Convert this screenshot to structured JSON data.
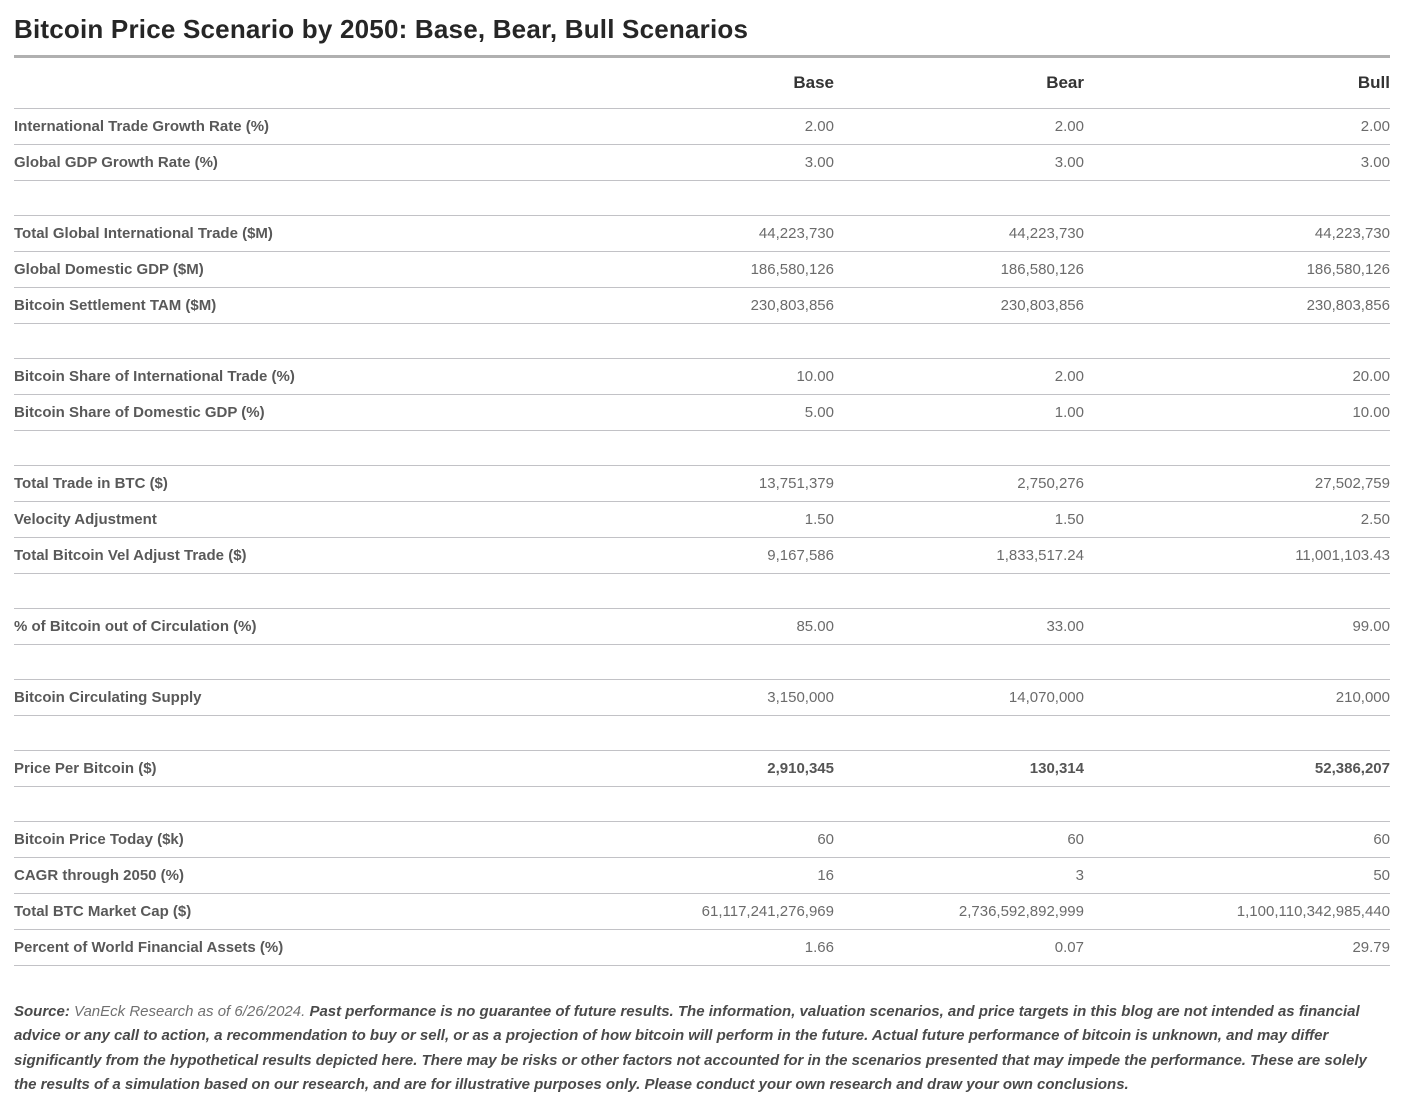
{
  "title": "Bitcoin Price Scenario by 2050: Base, Bear, Bull Scenarios",
  "chart_data": {
    "type": "table",
    "title": "Bitcoin Price Scenario by 2050: Base, Bear, Bull Scenarios",
    "columns": [
      "Base",
      "Bear",
      "Bull"
    ],
    "groups": [
      {
        "rows": [
          {
            "label": "International Trade Growth Rate (%)",
            "values": [
              "2.00",
              "2.00",
              "2.00"
            ]
          },
          {
            "label": "Global GDP Growth Rate (%)",
            "values": [
              "3.00",
              "3.00",
              "3.00"
            ]
          }
        ]
      },
      {
        "rows": [
          {
            "label": "Total Global International Trade ($M)",
            "values": [
              "44,223,730",
              "44,223,730",
              "44,223,730"
            ]
          },
          {
            "label": "Global Domestic GDP ($M)",
            "values": [
              "186,580,126",
              "186,580,126",
              "186,580,126"
            ]
          },
          {
            "label": "Bitcoin Settlement TAM ($M)",
            "values": [
              "230,803,856",
              "230,803,856",
              "230,803,856"
            ]
          }
        ]
      },
      {
        "rows": [
          {
            "label": "Bitcoin Share of International Trade (%)",
            "values": [
              "10.00",
              "2.00",
              "20.00"
            ]
          },
          {
            "label": "Bitcoin Share of Domestic GDP (%)",
            "values": [
              "5.00",
              "1.00",
              "10.00"
            ]
          }
        ]
      },
      {
        "rows": [
          {
            "label": "Total Trade in BTC ($)",
            "values": [
              "13,751,379",
              "2,750,276",
              "27,502,759"
            ]
          },
          {
            "label": "Velocity Adjustment",
            "values": [
              "1.50",
              "1.50",
              "2.50"
            ]
          },
          {
            "label": "Total Bitcoin Vel Adjust Trade ($)",
            "values": [
              "9,167,586",
              "1,833,517.24",
              "11,001,103.43"
            ]
          }
        ]
      },
      {
        "rows": [
          {
            "label": "% of Bitcoin out of Circulation (%)",
            "values": [
              "85.00",
              "33.00",
              "99.00"
            ]
          }
        ]
      },
      {
        "rows": [
          {
            "label": "Bitcoin Circulating Supply",
            "values": [
              "3,150,000",
              "14,070,000",
              "210,000"
            ]
          }
        ]
      },
      {
        "rows": [
          {
            "label": "Price Per Bitcoin ($)",
            "values": [
              "2,910,345",
              "130,314",
              "52,386,207"
            ],
            "emphasis": true
          }
        ]
      },
      {
        "rows": [
          {
            "label": "Bitcoin Price Today ($k)",
            "values": [
              "60",
              "60",
              "60"
            ]
          },
          {
            "label": "CAGR through 2050 (%)",
            "values": [
              "16",
              "3",
              "50"
            ]
          },
          {
            "label": "Total BTC Market Cap ($)",
            "values": [
              "61,117,241,276,969",
              "2,736,592,892,999",
              "1,100,110,342,985,440"
            ]
          },
          {
            "label": "Percent of World Financial Assets (%)",
            "values": [
              "1.66",
              "0.07",
              "29.79"
            ]
          }
        ]
      }
    ]
  },
  "footer": {
    "source_label": "Source: ",
    "source_text": "VanEck Research as of 6/26/2024. ",
    "disclaimer": "Past performance is no guarantee of future results. The information, valuation scenarios, and price targets in this blog are not intended as financial advice or any call to action, a recommendation to buy or sell, or as a projection of how bitcoin will perform in the future. Actual future performance of bitcoin is unknown, and may differ significantly from the hypothetical results depicted here. There may be risks or other factors not accounted for in the scenarios presented that may impede the performance. These are solely the results of a simulation based on our research, and are for illustrative purposes only. Please conduct your own research and draw your own conclusions."
  }
}
